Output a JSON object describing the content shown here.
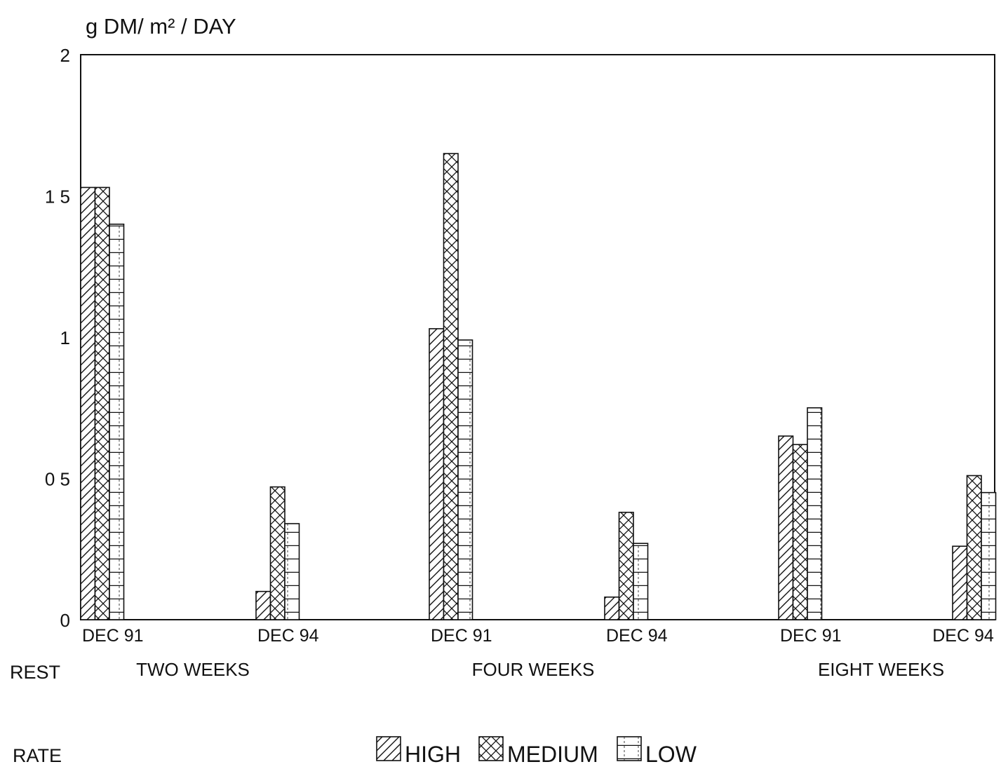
{
  "chart_data": {
    "type": "bar",
    "ylabel": "g DM/ m² / DAY",
    "ylim": [
      0,
      2
    ],
    "yticks": [
      {
        "value": 0,
        "label": "0"
      },
      {
        "value": 0.5,
        "label": "0 5"
      },
      {
        "value": 1,
        "label": "1"
      },
      {
        "value": 1.5,
        "label": "1 5"
      },
      {
        "value": 2,
        "label": "2"
      }
    ],
    "categories": [
      "DEC 91",
      "DEC 94",
      "DEC 91",
      "DEC 94",
      "DEC 91",
      "DEC 94"
    ],
    "groups": [
      {
        "label": "TWO WEEKS",
        "categories": [
          0,
          1
        ]
      },
      {
        "label": "FOUR WEEKS",
        "categories": [
          2,
          3
        ]
      },
      {
        "label": "EIGHT WEEKS",
        "categories": [
          4,
          5
        ]
      }
    ],
    "rest_label": "REST",
    "rate_label": "RATE",
    "series": [
      {
        "name": "HIGH",
        "pattern": "diagonal",
        "values": [
          1.53,
          0.1,
          1.03,
          0.08,
          0.65,
          0.26
        ]
      },
      {
        "name": "MEDIUM",
        "pattern": "crosshatch",
        "values": [
          1.53,
          0.47,
          1.65,
          0.38,
          0.62,
          0.51
        ]
      },
      {
        "name": "LOW",
        "pattern": "horizontal",
        "values": [
          1.4,
          0.34,
          0.99,
          0.27,
          0.75,
          0.45
        ]
      }
    ],
    "grid": false,
    "legend_position": "bottom"
  }
}
